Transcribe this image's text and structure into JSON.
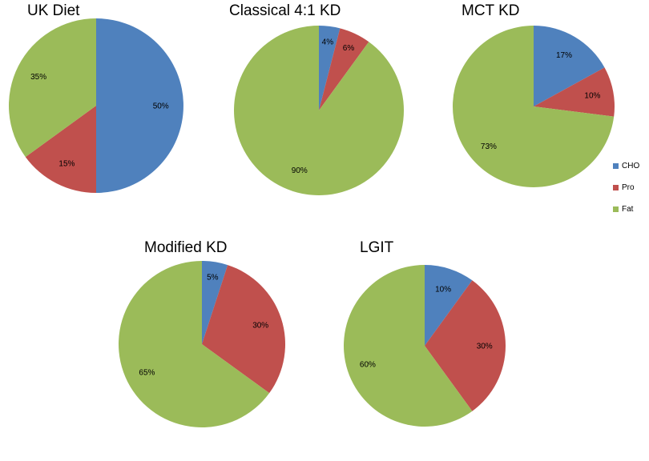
{
  "colors": {
    "CHO": "#4f81bd",
    "Pro": "#c0504d",
    "Fat": "#9bbb59"
  },
  "legend": {
    "placement": "right",
    "entries": [
      {
        "label": "CHO",
        "color": "#4f81bd"
      },
      {
        "label": "Pro",
        "color": "#c0504d"
      },
      {
        "label": "Fat",
        "color": "#9bbb59"
      }
    ]
  },
  "chart_data": [
    {
      "type": "pie",
      "title": "UK Diet",
      "categories": [
        "CHO",
        "Pro",
        "Fat"
      ],
      "values": [
        50,
        15,
        35
      ],
      "data_labels": [
        "50%",
        "15%",
        "35%"
      ]
    },
    {
      "type": "pie",
      "title": "Classical 4:1 KD",
      "categories": [
        "CHO",
        "Pro",
        "Fat"
      ],
      "values": [
        4,
        6,
        90
      ],
      "data_labels": [
        "4%",
        "6%",
        "90%"
      ]
    },
    {
      "type": "pie",
      "title": "MCT KD",
      "categories": [
        "CHO",
        "Pro",
        "Fat"
      ],
      "values": [
        17,
        10,
        73
      ],
      "data_labels": [
        "17%",
        "10%",
        "73%"
      ]
    },
    {
      "type": "pie",
      "title": "Modified KD",
      "categories": [
        "CHO",
        "Pro",
        "Fat"
      ],
      "values": [
        5,
        30,
        65
      ],
      "data_labels": [
        "5%",
        "30%",
        "65%"
      ]
    },
    {
      "type": "pie",
      "title": "LGIT",
      "categories": [
        "CHO",
        "Pro",
        "Fat"
      ],
      "values": [
        10,
        30,
        60
      ],
      "data_labels": [
        "10%",
        "30%",
        "60%"
      ]
    }
  ]
}
